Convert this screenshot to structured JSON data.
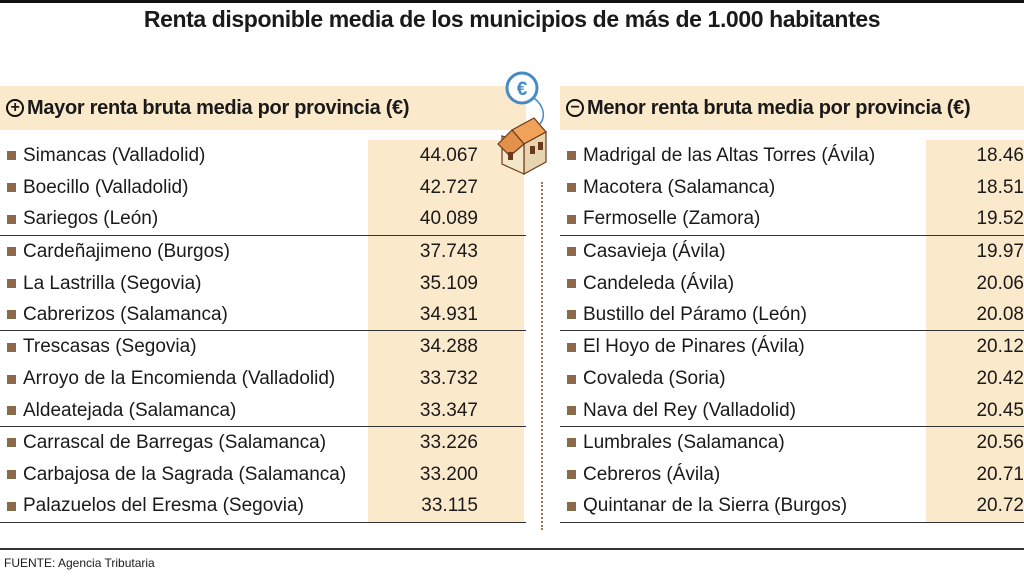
{
  "title": "Renta disponible media de los municipios de más de 1.000 habitantes",
  "colors": {
    "accent_bg": "#fbe9cc",
    "bullet": "#8a6a4a",
    "icon_orange": "#f0a25a",
    "icon_blue": "#4a8ac4"
  },
  "left": {
    "icon": "plus-icon",
    "sign": "+",
    "header": "Mayor renta bruta media por provincia (€)",
    "rows": [
      {
        "name": "Simancas (Valladolid)",
        "value": "44.067"
      },
      {
        "name": "Boecillo (Valladolid)",
        "value": "42.727"
      },
      {
        "name": "Sariegos (León)",
        "value": "40.089"
      },
      {
        "name": "Cardeñajimeno (Burgos)",
        "value": "37.743"
      },
      {
        "name": "La Lastrilla (Segovia)",
        "value": "35.109"
      },
      {
        "name": "Cabrerizos (Salamanca)",
        "value": "34.931"
      },
      {
        "name": "Trescasas (Segovia)",
        "value": "34.288"
      },
      {
        "name": "Arroyo de la Encomienda (Valladolid)",
        "value": "33.732"
      },
      {
        "name": "Aldeatejada (Salamanca)",
        "value": "33.347"
      },
      {
        "name": "Carrascal de Barregas (Salamanca)",
        "value": "33.226"
      },
      {
        "name": "Carbajosa de la Sagrada (Salamanca)",
        "value": "33.200"
      },
      {
        "name": "Palazuelos del Eresma (Segovia)",
        "value": "33.115"
      }
    ]
  },
  "right": {
    "icon": "minus-icon",
    "sign": "−",
    "header": "Menor renta bruta media por provincia (€)",
    "rows": [
      {
        "name": "Madrigal de las Altas Torres (Ávila)",
        "value": "18.46"
      },
      {
        "name": "Macotera (Salamanca)",
        "value": "18.51"
      },
      {
        "name": "Fermoselle (Zamora)",
        "value": "19.52"
      },
      {
        "name": "Casavieja (Ávila)",
        "value": "19.97"
      },
      {
        "name": "Candeleda (Ávila)",
        "value": "20.06"
      },
      {
        "name": "Bustillo del Páramo (León)",
        "value": "20.08"
      },
      {
        "name": "El Hoyo de Pinares (Ávila)",
        "value": "20.12"
      },
      {
        "name": "Covaleda (Soria)",
        "value": "20.42"
      },
      {
        "name": "Nava del Rey (Valladolid)",
        "value": "20.45"
      },
      {
        "name": "Lumbrales (Salamanca)",
        "value": "20.56"
      },
      {
        "name": "Cebreros (Ávila)",
        "value": "20.71"
      },
      {
        "name": "Quintanar de la Sierra (Burgos)",
        "value": "20.72"
      }
    ]
  },
  "center_icon": {
    "icon": "euro-house-icon",
    "symbol": "€"
  },
  "source": "FUENTE: Agencia Tributaria"
}
